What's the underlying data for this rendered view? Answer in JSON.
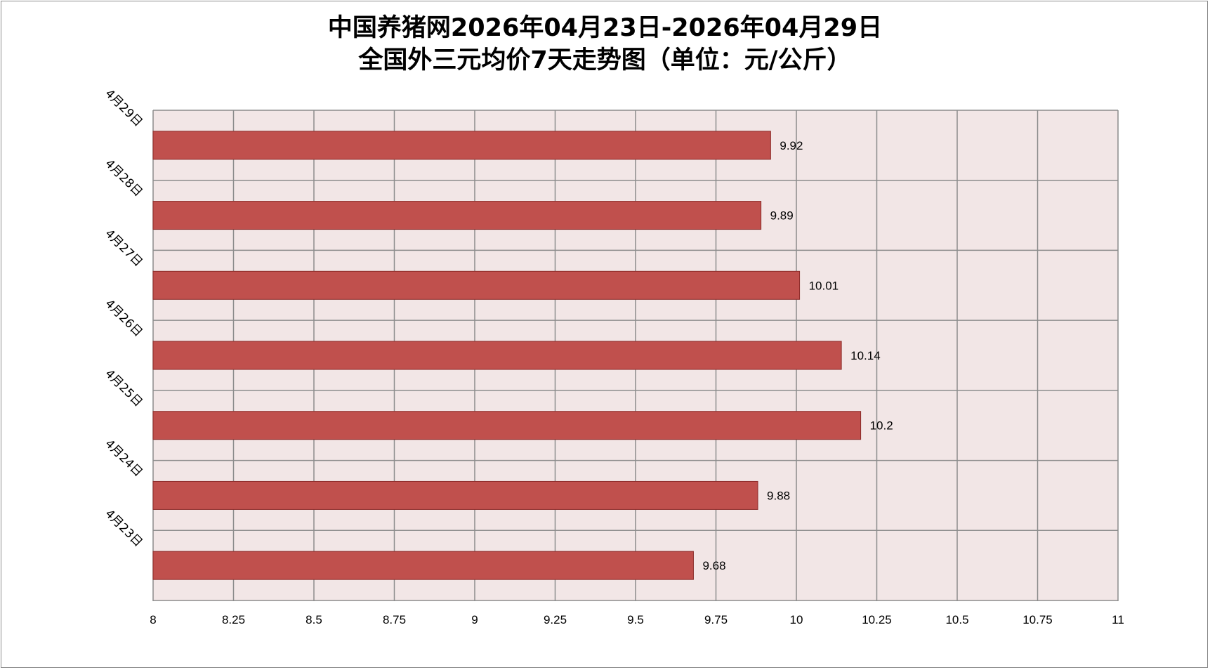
{
  "chart_data": {
    "type": "bar",
    "orientation": "horizontal",
    "title_line1": "中国养猪网2026年04月23日-2026年04月29日",
    "title_line2": "全国外三元均价7天走势图（单位：元/公斤）",
    "categories": [
      "4月23日",
      "4月24日",
      "4月25日",
      "4月26日",
      "4月27日",
      "4月28日",
      "4月29日"
    ],
    "values": [
      9.68,
      9.88,
      10.2,
      10.14,
      10.01,
      9.89,
      9.92
    ],
    "value_labels": [
      "9.68",
      "9.88",
      "10.2",
      "10.14",
      "10.01",
      "9.89",
      "9.92"
    ],
    "xlim": [
      8,
      11
    ],
    "xticks": [
      8,
      8.25,
      8.5,
      8.75,
      9,
      9.25,
      9.5,
      9.75,
      10,
      10.25,
      10.5,
      10.75,
      11
    ],
    "xtick_labels": [
      "8",
      "8.25",
      "8.5",
      "8.75",
      "9",
      "9.25",
      "9.5",
      "9.75",
      "10",
      "10.25",
      "10.5",
      "10.75",
      "11"
    ],
    "grid": true,
    "legend": "none",
    "colors": {
      "bar": "#c0504d",
      "bar_border": "#8b2b29",
      "plot_background": "#f2e6e6",
      "grid": "#8c8c8c"
    }
  }
}
